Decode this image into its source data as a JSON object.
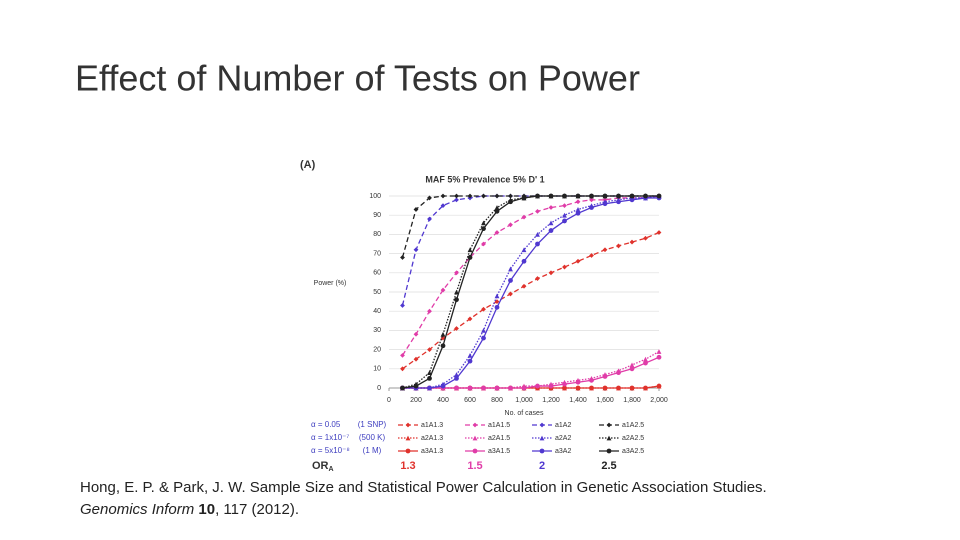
{
  "slide_title": "Effect of Number of Tests on Power",
  "citation": {
    "line1": "Hong, E. P. & Park, J. W. Sample Size and Statistical Power Calculation in Genetic Association Studies.",
    "journal": "Genomics Inform",
    "volume": "10",
    "rest": ", 117 (2012)."
  },
  "chart_data": {
    "type": "line",
    "panel": "(A)",
    "title": "MAF 5%  Prevalence 5%  D' 1",
    "ylabel": "Power (%)",
    "xlabel": "No. of cases",
    "x": [
      100,
      200,
      300,
      400,
      500,
      600,
      700,
      800,
      900,
      1000,
      1100,
      1200,
      1300,
      1400,
      1500,
      1600,
      1700,
      1800,
      1900,
      2000
    ],
    "xlim": [
      0,
      2000
    ],
    "ylim": [
      0,
      100
    ],
    "xticks": [
      0,
      200,
      400,
      600,
      800,
      {
        "value": 1000,
        "label": "1,000"
      },
      {
        "value": 1200,
        "label": "1,200"
      },
      {
        "value": 1400,
        "label": "1,400"
      },
      {
        "value": 1600,
        "label": "1,600"
      },
      {
        "value": 1800,
        "label": "1,800"
      },
      {
        "value": 2000,
        "label": "2,000"
      }
    ],
    "yticks": [
      0,
      10,
      20,
      30,
      40,
      50,
      60,
      70,
      80,
      90,
      100
    ],
    "grid": true,
    "alpha_rows": [
      {
        "alpha": "α = 0.05",
        "tests": "(1 SNP)"
      },
      {
        "alpha": "α = 1x10⁻⁷",
        "tests": "(500 K)"
      },
      {
        "alpha": "α = 5x10⁻⁸",
        "tests": "(1 M)"
      }
    ],
    "or_label": "OR",
    "or_subscript": "A",
    "or_values": [
      "1.3",
      "1.5",
      "2",
      "2.5"
    ],
    "series": [
      {
        "name": "a1A1.3",
        "color": "#e0322c",
        "line_style": "dashed",
        "marker": "diamond",
        "values": [
          10,
          15,
          20,
          26,
          31,
          36,
          41,
          45,
          49,
          53,
          57,
          60,
          63,
          66,
          69,
          72,
          74,
          76,
          78,
          81
        ]
      },
      {
        "name": "a1A1.5",
        "color": "#e03ca8",
        "line_style": "dashed",
        "marker": "diamond",
        "values": [
          17,
          28,
          40,
          51,
          60,
          68,
          75,
          81,
          85,
          89,
          92,
          94,
          95,
          97,
          98,
          98,
          99,
          99,
          99,
          100
        ]
      },
      {
        "name": "a1A2",
        "color": "#5038d0",
        "line_style": "dashed",
        "marker": "diamond",
        "values": [
          43,
          72,
          88,
          95,
          98,
          99,
          100,
          100,
          100,
          100,
          100,
          100,
          100,
          100,
          100,
          100,
          100,
          100,
          100,
          100
        ]
      },
      {
        "name": "a1A2.5",
        "color": "#222222",
        "line_style": "dashed",
        "marker": "diamond",
        "values": [
          68,
          93,
          99,
          100,
          100,
          100,
          100,
          100,
          100,
          100,
          100,
          100,
          100,
          100,
          100,
          100,
          100,
          100,
          100,
          100
        ]
      },
      {
        "name": "a2A1.3",
        "color": "#e0322c",
        "line_style": "dotted",
        "marker": "triangle",
        "values": [
          0,
          0,
          0,
          0,
          0,
          0,
          0,
          0,
          0,
          0,
          0,
          0,
          0,
          0,
          0,
          0,
          0,
          0,
          0,
          1
        ]
      },
      {
        "name": "a2A1.5",
        "color": "#e03ca8",
        "line_style": "dotted",
        "marker": "triangle",
        "values": [
          0,
          0,
          0,
          0,
          0,
          0,
          0,
          0,
          0,
          1,
          1,
          2,
          3,
          4,
          5,
          7,
          9,
          12,
          15,
          19
        ]
      },
      {
        "name": "a2A2",
        "color": "#5038d0",
        "line_style": "dotted",
        "marker": "triangle",
        "values": [
          0,
          0,
          0,
          2,
          7,
          17,
          30,
          48,
          62,
          72,
          80,
          86,
          90,
          93,
          95,
          97,
          98,
          99,
          99,
          100
        ]
      },
      {
        "name": "a2A2.5",
        "color": "#222222",
        "line_style": "dotted",
        "marker": "triangle",
        "values": [
          0,
          2,
          8,
          28,
          50,
          72,
          86,
          94,
          98,
          99,
          100,
          100,
          100,
          100,
          100,
          100,
          100,
          100,
          100,
          100
        ]
      },
      {
        "name": "a3A1.3",
        "color": "#e0322c",
        "line_style": "solid",
        "marker": "circle",
        "values": [
          0,
          0,
          0,
          0,
          0,
          0,
          0,
          0,
          0,
          0,
          0,
          0,
          0,
          0,
          0,
          0,
          0,
          0,
          0,
          1
        ]
      },
      {
        "name": "a3A1.5",
        "color": "#e03ca8",
        "line_style": "solid",
        "marker": "circle",
        "values": [
          0,
          0,
          0,
          0,
          0,
          0,
          0,
          0,
          0,
          0,
          1,
          1,
          2,
          3,
          4,
          6,
          8,
          10,
          13,
          16
        ]
      },
      {
        "name": "a3A2",
        "color": "#5038d0",
        "line_style": "solid",
        "marker": "circle",
        "values": [
          0,
          0,
          0,
          1,
          5,
          14,
          26,
          42,
          56,
          66,
          75,
          82,
          87,
          91,
          94,
          96,
          97,
          98,
          99,
          99
        ]
      },
      {
        "name": "a3A2.5",
        "color": "#222222",
        "line_style": "solid",
        "marker": "circle",
        "values": [
          0,
          1,
          5,
          22,
          46,
          68,
          83,
          92,
          97,
          99,
          100,
          100,
          100,
          100,
          100,
          100,
          100,
          100,
          100,
          100
        ]
      }
    ]
  }
}
